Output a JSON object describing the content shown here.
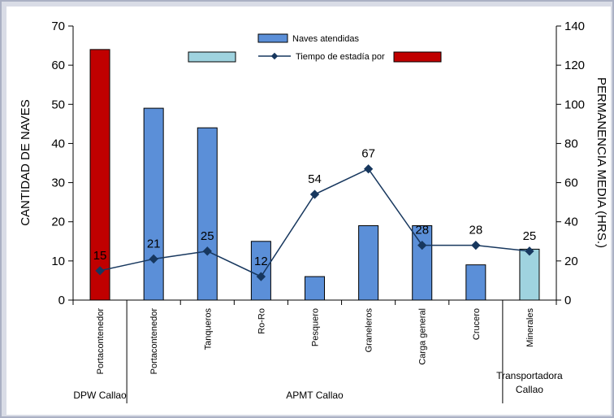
{
  "chart_data": {
    "type": "bar",
    "categories": [
      "Portacontenedor",
      "Portacontenedor",
      "Tanqueros",
      "Ro-Ro",
      "Pesquero",
      "Graneleros",
      "Carga general",
      "Crucero",
      "Minerales"
    ],
    "groups": [
      {
        "name": "DPW Callao",
        "from": 0,
        "to": 0
      },
      {
        "name": "APMT Callao",
        "from": 1,
        "to": 7
      },
      {
        "name": "Transportadora Callao",
        "from": 8,
        "to": 8
      }
    ],
    "series": [
      {
        "name": "Naves atendidas",
        "type": "bar",
        "axis": "left",
        "values": [
          64,
          49,
          44,
          15,
          6,
          19,
          19,
          9,
          13
        ],
        "colors": [
          "#c00000",
          "#5b8fd8",
          "#5b8fd8",
          "#5b8fd8",
          "#5b8fd8",
          "#5b8fd8",
          "#5b8fd8",
          "#5b8fd8",
          "#9fd3df"
        ]
      },
      {
        "name": "Tiempo de estadía por",
        "type": "line",
        "axis": "right",
        "values": [
          15,
          21,
          25,
          12,
          54,
          67,
          28,
          28,
          25
        ],
        "color": "#17375e"
      }
    ],
    "ylabel": "CANTIDAD DE NAVES",
    "y2label": "PERMANENCIA MEDIA (HRS.)",
    "ylim": [
      0,
      70
    ],
    "y2lim": [
      0,
      140
    ],
    "yticks": [
      0,
      10,
      20,
      30,
      40,
      50,
      60,
      70
    ],
    "y2ticks": [
      0,
      20,
      40,
      60,
      80,
      100,
      120,
      140
    ],
    "legend_placement": "top-center"
  }
}
